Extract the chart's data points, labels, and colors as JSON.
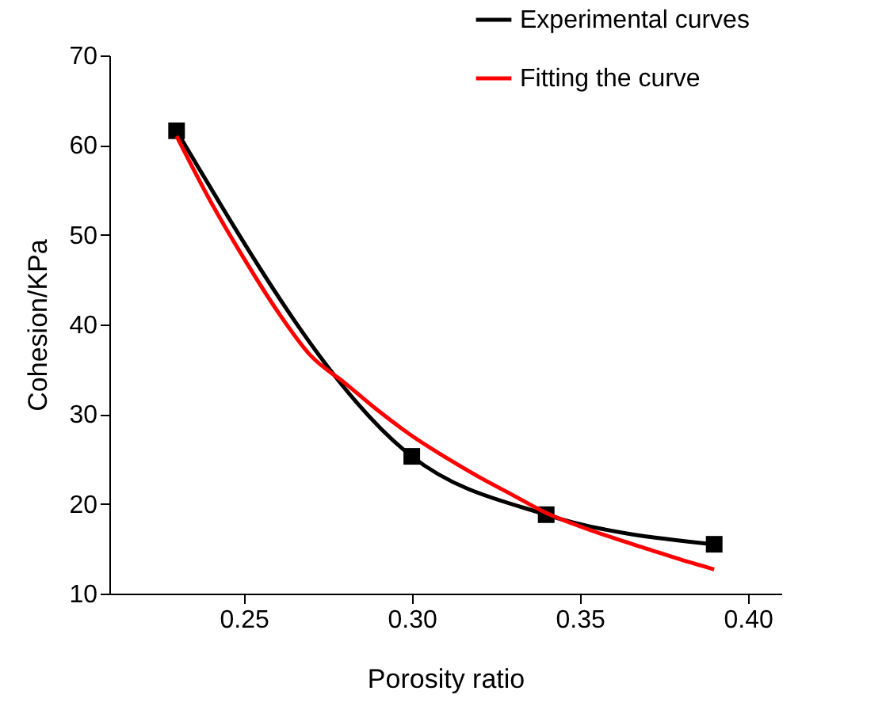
{
  "chart_data": {
    "type": "line",
    "xlabel": "Porosity ratio",
    "ylabel": "Cohesion/KPa",
    "xlim": [
      0.21,
      0.41
    ],
    "xticks": [
      0.25,
      {
        "value": 0.3,
        "label": "0.30"
      },
      0.35,
      {
        "value": 0.4,
        "label": "0.40"
      }
    ],
    "ylim": [
      10,
      70
    ],
    "yticks": [
      10,
      20,
      30,
      40,
      50,
      60,
      70
    ],
    "grid": false,
    "legend": "top right",
    "marker": "square",
    "series": [
      {
        "name": "Experimental curves",
        "color": "#000000",
        "x": [
          0.23,
          0.3,
          0.34,
          0.39
        ],
        "values": [
          61.6,
          25.3,
          18.8,
          15.5
        ]
      },
      {
        "name": "Fitting the curve",
        "color": "#ff0000",
        "marker": "none",
        "x": [
          0.23,
          0.24,
          0.25,
          0.26,
          0.27,
          0.28,
          0.29,
          0.3,
          0.31,
          0.32,
          0.33,
          0.34,
          0.35,
          0.36,
          0.37,
          0.38,
          0.39
        ],
        "values": [
          61,
          53.8,
          47.4,
          41.5,
          36.5,
          33.5,
          30.4,
          27.6,
          25.2,
          23,
          21,
          19,
          17.5,
          16.2,
          15,
          13.8,
          12.7
        ]
      }
    ]
  }
}
